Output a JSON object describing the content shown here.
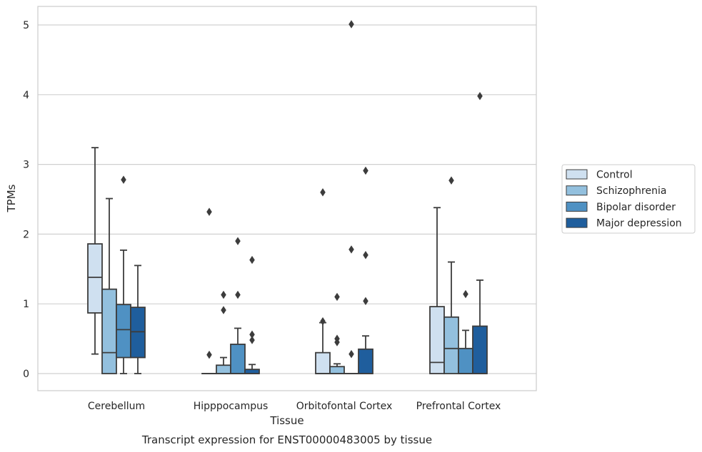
{
  "chart_data": {
    "type": "boxplot",
    "title": "",
    "caption": "Transcript expression for ENST00000483005 by tissue",
    "xlabel": "Tissue",
    "ylabel": "TPMs",
    "ylim": [
      -0.24,
      5.27
    ],
    "yticks": [
      0,
      1,
      2,
      3,
      4,
      5
    ],
    "grid": true,
    "legend_position": "right",
    "categories": [
      "Cerebellum",
      "Hipppocampus",
      "Orbitofontal Cortex",
      "Prefrontal Cortex"
    ],
    "series": [
      {
        "name": "Control",
        "color": "#cfe0f0",
        "boxes": [
          {
            "whislo": 0.28,
            "q1": 0.87,
            "med": 1.38,
            "q3": 1.86,
            "whishi": 3.24,
            "fliers": []
          },
          {
            "whislo": 0,
            "q1": 0,
            "med": 0,
            "q3": 0,
            "whishi": 0,
            "fliers": [
              0.27,
              2.32
            ]
          },
          {
            "whislo": 0,
            "q1": 0,
            "med": 0,
            "q3": 0.3,
            "whishi": 0.73,
            "fliers": [
              0.75,
              2.6
            ]
          },
          {
            "whislo": 0,
            "q1": 0,
            "med": 0.16,
            "q3": 0.96,
            "whishi": 2.38,
            "fliers": []
          }
        ]
      },
      {
        "name": "Schizophrenia",
        "color": "#93c0de",
        "boxes": [
          {
            "whislo": 0,
            "q1": 0,
            "med": 0.3,
            "q3": 1.21,
            "whishi": 2.51,
            "fliers": []
          },
          {
            "whislo": 0,
            "q1": 0,
            "med": 0,
            "q3": 0.12,
            "whishi": 0.23,
            "fliers": [
              0.91,
              1.13
            ]
          },
          {
            "whislo": 0,
            "q1": 0,
            "med": 0,
            "q3": 0.1,
            "whishi": 0.14,
            "fliers": [
              0.45,
              0.5,
              1.1
            ]
          },
          {
            "whislo": 0,
            "q1": 0,
            "med": 0.36,
            "q3": 0.81,
            "whishi": 1.6,
            "fliers": [
              2.77
            ]
          }
        ]
      },
      {
        "name": "Bipolar disorder",
        "color": "#4f91c3",
        "boxes": [
          {
            "whislo": 0,
            "q1": 0.23,
            "med": 0.63,
            "q3": 0.99,
            "whishi": 1.77,
            "fliers": [
              2.78
            ]
          },
          {
            "whislo": 0,
            "q1": 0,
            "med": 0,
            "q3": 0.42,
            "whishi": 0.65,
            "fliers": [
              1.13,
              1.9
            ]
          },
          {
            "whislo": 0,
            "q1": 0,
            "med": 0,
            "q3": 0,
            "whishi": 0,
            "fliers": [
              0.28,
              1.78,
              5.01
            ]
          },
          {
            "whislo": 0,
            "q1": 0,
            "med": 0,
            "q3": 0.36,
            "whishi": 0.62,
            "fliers": [
              1.14
            ]
          }
        ]
      },
      {
        "name": "Major depression",
        "color": "#1f5e9d",
        "boxes": [
          {
            "whislo": 0,
            "q1": 0.23,
            "med": 0.6,
            "q3": 0.95,
            "whishi": 1.55,
            "fliers": []
          },
          {
            "whislo": 0,
            "q1": 0,
            "med": 0,
            "q3": 0.06,
            "whishi": 0.13,
            "fliers": [
              0.48,
              0.56,
              1.63
            ]
          },
          {
            "whislo": 0,
            "q1": 0,
            "med": 0,
            "q3": 0.35,
            "whishi": 0.54,
            "fliers": [
              1.04,
              1.7,
              2.91
            ]
          },
          {
            "whislo": 0,
            "q1": 0,
            "med": 0,
            "q3": 0.68,
            "whishi": 1.34,
            "fliers": [
              3.98
            ]
          }
        ]
      }
    ]
  }
}
